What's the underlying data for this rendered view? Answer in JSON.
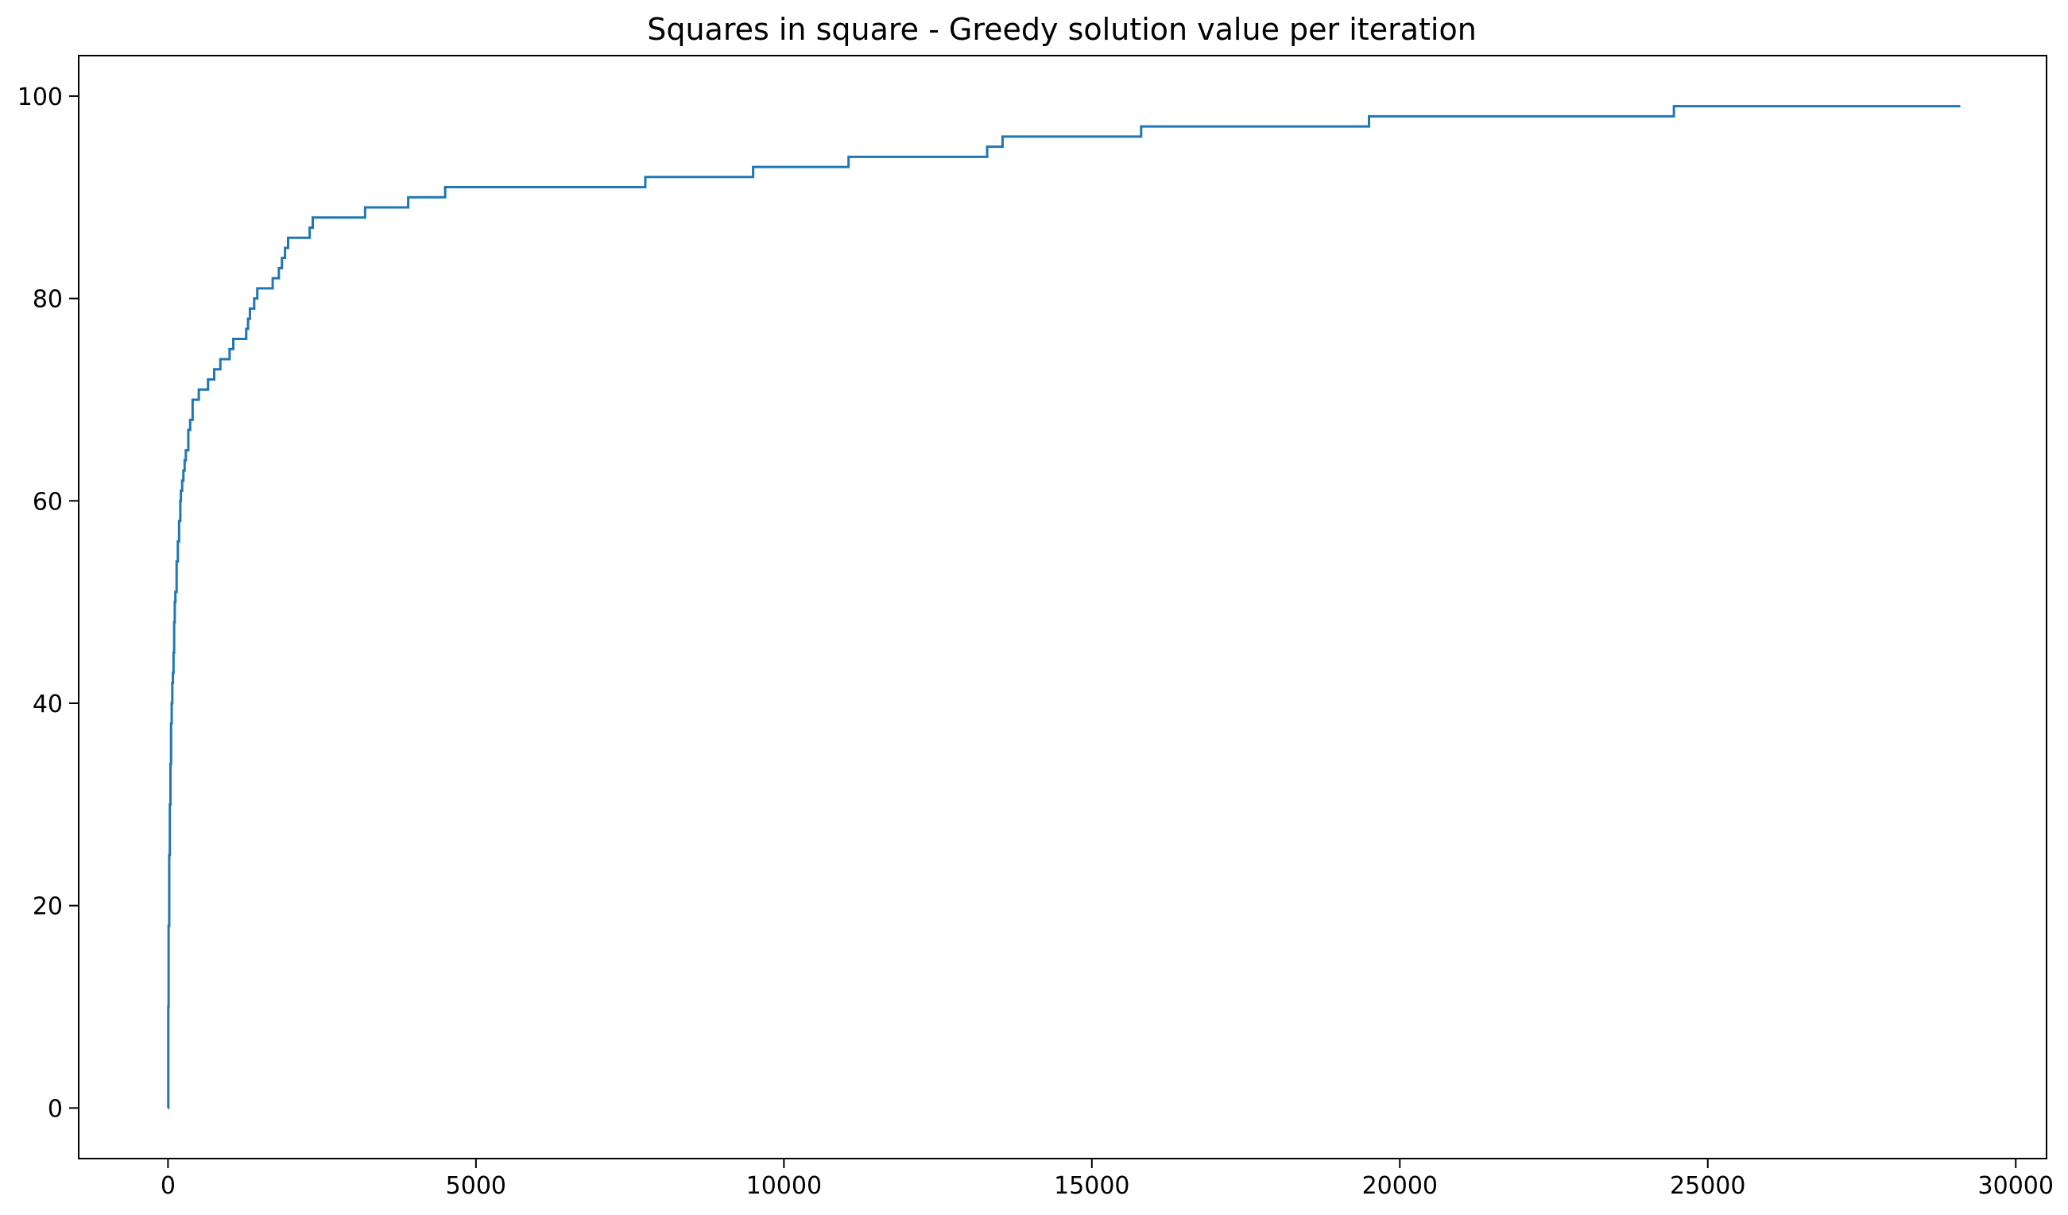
{
  "chart_data": {
    "type": "line",
    "title": "Squares in square - Greedy solution value per iteration",
    "xlabel": "",
    "ylabel": "",
    "xlim": [
      -1450,
      30500
    ],
    "ylim": [
      -5,
      104
    ],
    "x_ticks": [
      0,
      5000,
      10000,
      15000,
      20000,
      25000,
      30000
    ],
    "y_ticks": [
      0,
      20,
      40,
      60,
      80,
      100
    ],
    "grid": false,
    "legend": "none",
    "line_color": "#1f77b4",
    "step": "post",
    "x": [
      0,
      5,
      10,
      20,
      30,
      40,
      50,
      60,
      70,
      80,
      90,
      100,
      110,
      120,
      140,
      160,
      180,
      200,
      210,
      230,
      250,
      270,
      290,
      330,
      360,
      400,
      420,
      450,
      500,
      650,
      750,
      850,
      1000,
      1060,
      1100,
      1270,
      1300,
      1330,
      1400,
      1450,
      1700,
      1800,
      1850,
      1900,
      1950,
      2300,
      2350,
      3200,
      3900,
      4500,
      7750,
      9500,
      11050,
      13300,
      13550,
      15800,
      19500,
      24450,
      29100
    ],
    "y": [
      0,
      10,
      18,
      25,
      30,
      34,
      38,
      40,
      42,
      43,
      45,
      48,
      50,
      51,
      54,
      56,
      58,
      60,
      61,
      62,
      63,
      64,
      65,
      67,
      68,
      70,
      70,
      70,
      71,
      72,
      73,
      74,
      75,
      76,
      76,
      77,
      78,
      79,
      80,
      81,
      82,
      83,
      84,
      85,
      86,
      87,
      88,
      89,
      90,
      91,
      92,
      93,
      94,
      95,
      96,
      97,
      98,
      99,
      99
    ]
  }
}
